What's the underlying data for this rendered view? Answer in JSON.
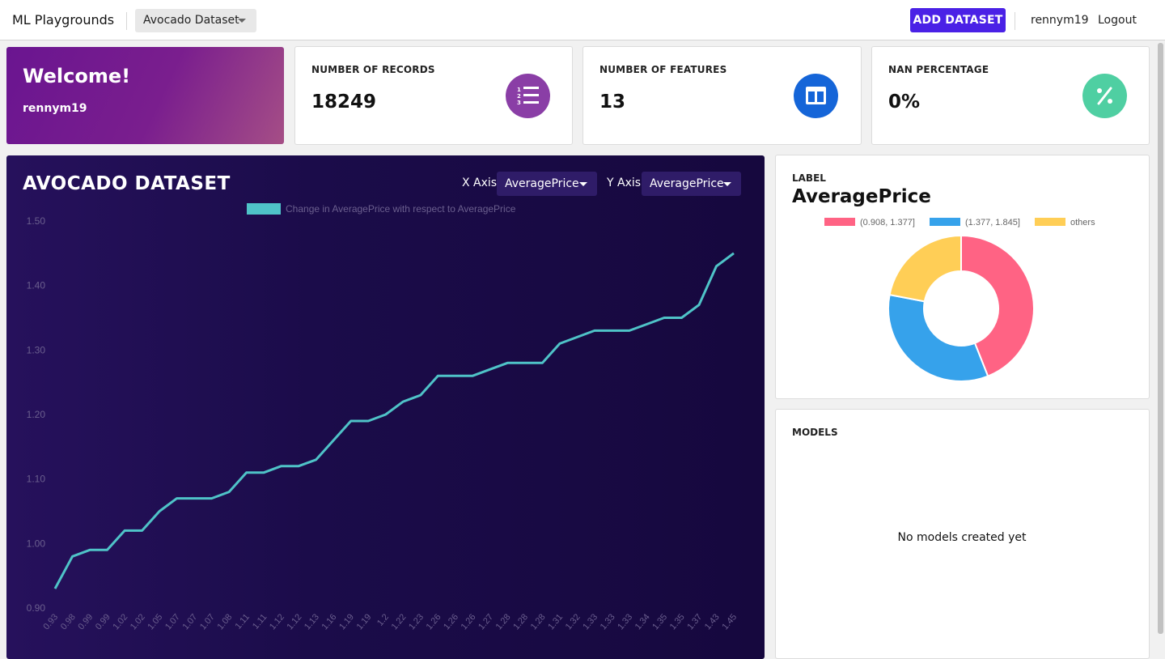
{
  "navbar": {
    "brand": "ML Playgrounds",
    "dataset_selected": "Avocado Dataset",
    "add_button": "ADD DATASET",
    "username": "rennym19",
    "logout": "Logout"
  },
  "welcome": {
    "title": "Welcome!",
    "username": "rennym19"
  },
  "stats": [
    {
      "label": "NUMBER OF RECORDS",
      "value": "18249",
      "icon": "list-numbered-icon",
      "color": "#8a3ea6"
    },
    {
      "label": "NUMBER OF FEATURES",
      "value": "13",
      "icon": "columns-icon",
      "color": "#1565d8"
    },
    {
      "label": "NAN PERCENTAGE",
      "value": "0%",
      "icon": "percent-icon",
      "color": "#4fcfa2"
    }
  ],
  "chart_panel": {
    "title": "AVOCADO DATASET",
    "x_axis_label": "X Axis",
    "x_axis_value": "AveragePrice",
    "y_axis_label": "Y Axis",
    "y_axis_value": "AveragePrice"
  },
  "chart_data": [
    {
      "type": "line",
      "legend": "Change in AveragePrice with respect to AveragePrice",
      "legend_placement": "top",
      "line_color": "#4fc3c8",
      "ylim": [
        0.9,
        1.5
      ],
      "yticks": [
        "0.90",
        "1.00",
        "1.10",
        "1.20",
        "1.30",
        "1.40",
        "1.50"
      ],
      "grid": false,
      "x": [
        "0.93",
        "0.98",
        "0.99",
        "0.99",
        "1.02",
        "1.02",
        "1.05",
        "1.07",
        "1.07",
        "1.07",
        "1.08",
        "1.11",
        "1.11",
        "1.12",
        "1.12",
        "1.13",
        "1.16",
        "1.19",
        "1.19",
        "1.2",
        "1.22",
        "1.23",
        "1.26",
        "1.26",
        "1.26",
        "1.27",
        "1.28",
        "1.28",
        "1.28",
        "1.31",
        "1.32",
        "1.33",
        "1.33",
        "1.33",
        "1.34",
        "1.35",
        "1.35",
        "1.37",
        "1.43",
        "1.45"
      ],
      "y": [
        0.93,
        0.98,
        0.99,
        0.99,
        1.02,
        1.02,
        1.05,
        1.07,
        1.07,
        1.07,
        1.08,
        1.11,
        1.11,
        1.12,
        1.12,
        1.13,
        1.16,
        1.19,
        1.19,
        1.2,
        1.22,
        1.23,
        1.26,
        1.26,
        1.26,
        1.27,
        1.28,
        1.28,
        1.28,
        1.31,
        1.32,
        1.33,
        1.33,
        1.33,
        1.34,
        1.35,
        1.35,
        1.37,
        1.43,
        1.45
      ]
    },
    {
      "type": "pie",
      "title": "AveragePrice",
      "categories": [
        "(0.908, 1.377]",
        "(1.377, 1.845]",
        "others"
      ],
      "values": [
        44,
        34,
        22
      ],
      "colors": [
        "#ff6384",
        "#36a2eb",
        "#ffce56"
      ],
      "legend_placement": "top"
    }
  ],
  "label_card": {
    "small": "LABEL",
    "big": "AveragePrice"
  },
  "models_card": {
    "title": "MODELS",
    "empty_text": "No models created yet"
  }
}
